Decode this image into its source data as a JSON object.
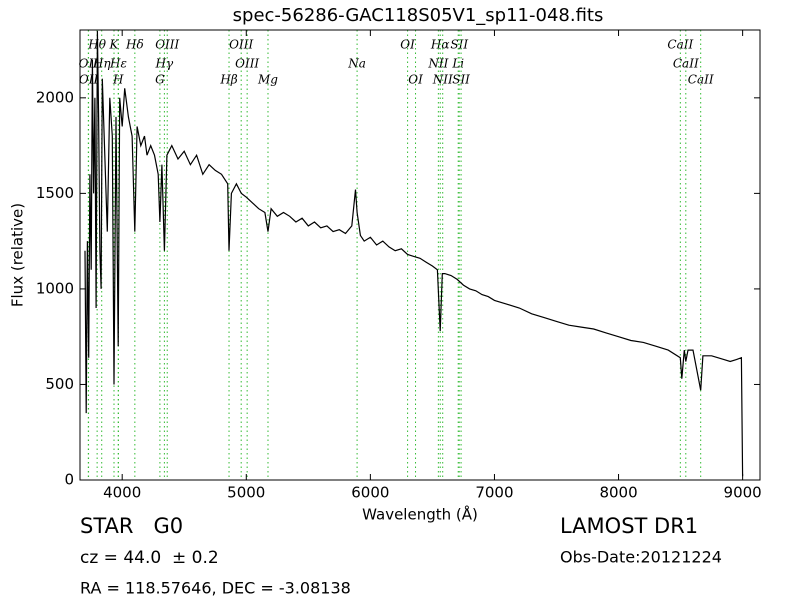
{
  "chart_data": {
    "type": "line",
    "title": "spec-56286-GAC118S05V1_sp11-048.fits",
    "x_label": "Wavelength (Å)",
    "y_label": "Flux (relative)",
    "xlim": [
      3660,
      9140
    ],
    "ylim": [
      0,
      2355
    ],
    "xticks": [
      4000,
      5000,
      6000,
      7000,
      8000,
      9000
    ],
    "yticks": [
      0,
      500,
      1000,
      1500,
      2000
    ],
    "color": "#000000",
    "line_color": "#33bb33",
    "x": [
      3700,
      3710,
      3720,
      3730,
      3740,
      3750,
      3760,
      3770,
      3780,
      3790,
      3800,
      3810,
      3820,
      3830,
      3840,
      3860,
      3880,
      3900,
      3920,
      3934,
      3950,
      3968,
      3980,
      4000,
      4020,
      4050,
      4080,
      4102,
      4120,
      4150,
      4180,
      4200,
      4230,
      4260,
      4290,
      4304,
      4320,
      4340,
      4360,
      4400,
      4450,
      4500,
      4550,
      4600,
      4650,
      4700,
      4750,
      4800,
      4850,
      4861,
      4880,
      4920,
      4960,
      5000,
      5050,
      5100,
      5150,
      5175,
      5200,
      5250,
      5300,
      5350,
      5400,
      5450,
      5500,
      5550,
      5600,
      5650,
      5700,
      5750,
      5800,
      5850,
      5880,
      5893,
      5920,
      5950,
      6000,
      6050,
      6100,
      6150,
      6200,
      6250,
      6300,
      6350,
      6400,
      6450,
      6500,
      6540,
      6563,
      6580,
      6600,
      6650,
      6700,
      6750,
      6800,
      6850,
      6900,
      6950,
      7000,
      7100,
      7200,
      7300,
      7400,
      7500,
      7600,
      7700,
      7800,
      7900,
      8000,
      8100,
      8200,
      8300,
      8400,
      8498,
      8510,
      8530,
      8542,
      8560,
      8600,
      8662,
      8680,
      8750,
      8800,
      8850,
      8900,
      8950,
      8990,
      9000
    ],
    "values": [
      1200,
      350,
      1250,
      640,
      1600,
      1100,
      2200,
      1500,
      2000,
      900,
      2350,
      1900,
      1200,
      1000,
      2100,
      1700,
      1300,
      2000,
      1800,
      500,
      1900,
      700,
      2000,
      1850,
      2050,
      1900,
      1800,
      1300,
      1850,
      1750,
      1800,
      1700,
      1750,
      1700,
      1600,
      1350,
      1650,
      1200,
      1700,
      1750,
      1680,
      1720,
      1650,
      1700,
      1600,
      1650,
      1620,
      1600,
      1550,
      1200,
      1500,
      1550,
      1500,
      1480,
      1450,
      1420,
      1400,
      1300,
      1420,
      1380,
      1400,
      1380,
      1350,
      1370,
      1330,
      1350,
      1320,
      1330,
      1300,
      1310,
      1290,
      1330,
      1520,
      1400,
      1280,
      1250,
      1270,
      1230,
      1250,
      1220,
      1200,
      1210,
      1180,
      1170,
      1160,
      1140,
      1120,
      1100,
      780,
      1080,
      1080,
      1070,
      1050,
      1020,
      1000,
      990,
      970,
      960,
      940,
      920,
      900,
      870,
      850,
      830,
      810,
      800,
      790,
      770,
      750,
      730,
      720,
      700,
      680,
      640,
      530,
      680,
      620,
      680,
      680,
      470,
      650,
      650,
      640,
      630,
      620,
      630,
      640,
      20
    ],
    "spectral_lines": [
      [
        {
          "label": "Hθ",
          "wavelength": 3798
        },
        {
          "label": "K",
          "wavelength": 3934
        },
        {
          "label": "Hδ",
          "wavelength": 4102
        },
        {
          "label": "OIII",
          "wavelength": 4363
        },
        {
          "label": "OIII",
          "wavelength": 4959
        },
        {
          "label": "OI",
          "wavelength": 6300
        },
        {
          "label": "Hα",
          "wavelength": 6563
        },
        {
          "label": "SII",
          "wavelength": 6716
        },
        {
          "label": "CaII",
          "wavelength": 8498
        }
      ],
      [
        {
          "label": "OII",
          "wavelength": 3727
        },
        {
          "label": "Hη",
          "wavelength": 3835
        },
        {
          "label": "Hε",
          "wavelength": 3970
        },
        {
          "label": "Hγ",
          "wavelength": 4340
        },
        {
          "label": "OIII",
          "wavelength": 5007
        },
        {
          "label": "Na",
          "wavelength": 5893
        },
        {
          "label": "NII",
          "wavelength": 6548
        },
        {
          "label": "Li",
          "wavelength": 6708
        },
        {
          "label": "CaII",
          "wavelength": 8542
        }
      ],
      [
        {
          "label": "OII",
          "wavelength": 3729
        },
        {
          "label": "H",
          "wavelength": 3968
        },
        {
          "label": "G",
          "wavelength": 4304
        },
        {
          "label": "Hβ",
          "wavelength": 4861
        },
        {
          "label": "Mg",
          "wavelength": 5175
        },
        {
          "label": "OI",
          "wavelength": 6364
        },
        {
          "label": "NII",
          "wavelength": 6583
        },
        {
          "label": "SII",
          "wavelength": 6731
        },
        {
          "label": "CaII",
          "wavelength": 8662
        }
      ]
    ],
    "annotations": {
      "object": "STAR   G0",
      "redshift": "cz = 44.0  ± 0.2",
      "coords": "RA = 118.57646, DEC = -3.08138",
      "survey": "LAMOST DR1",
      "obs_date": "Obs-Date:20121224"
    }
  }
}
